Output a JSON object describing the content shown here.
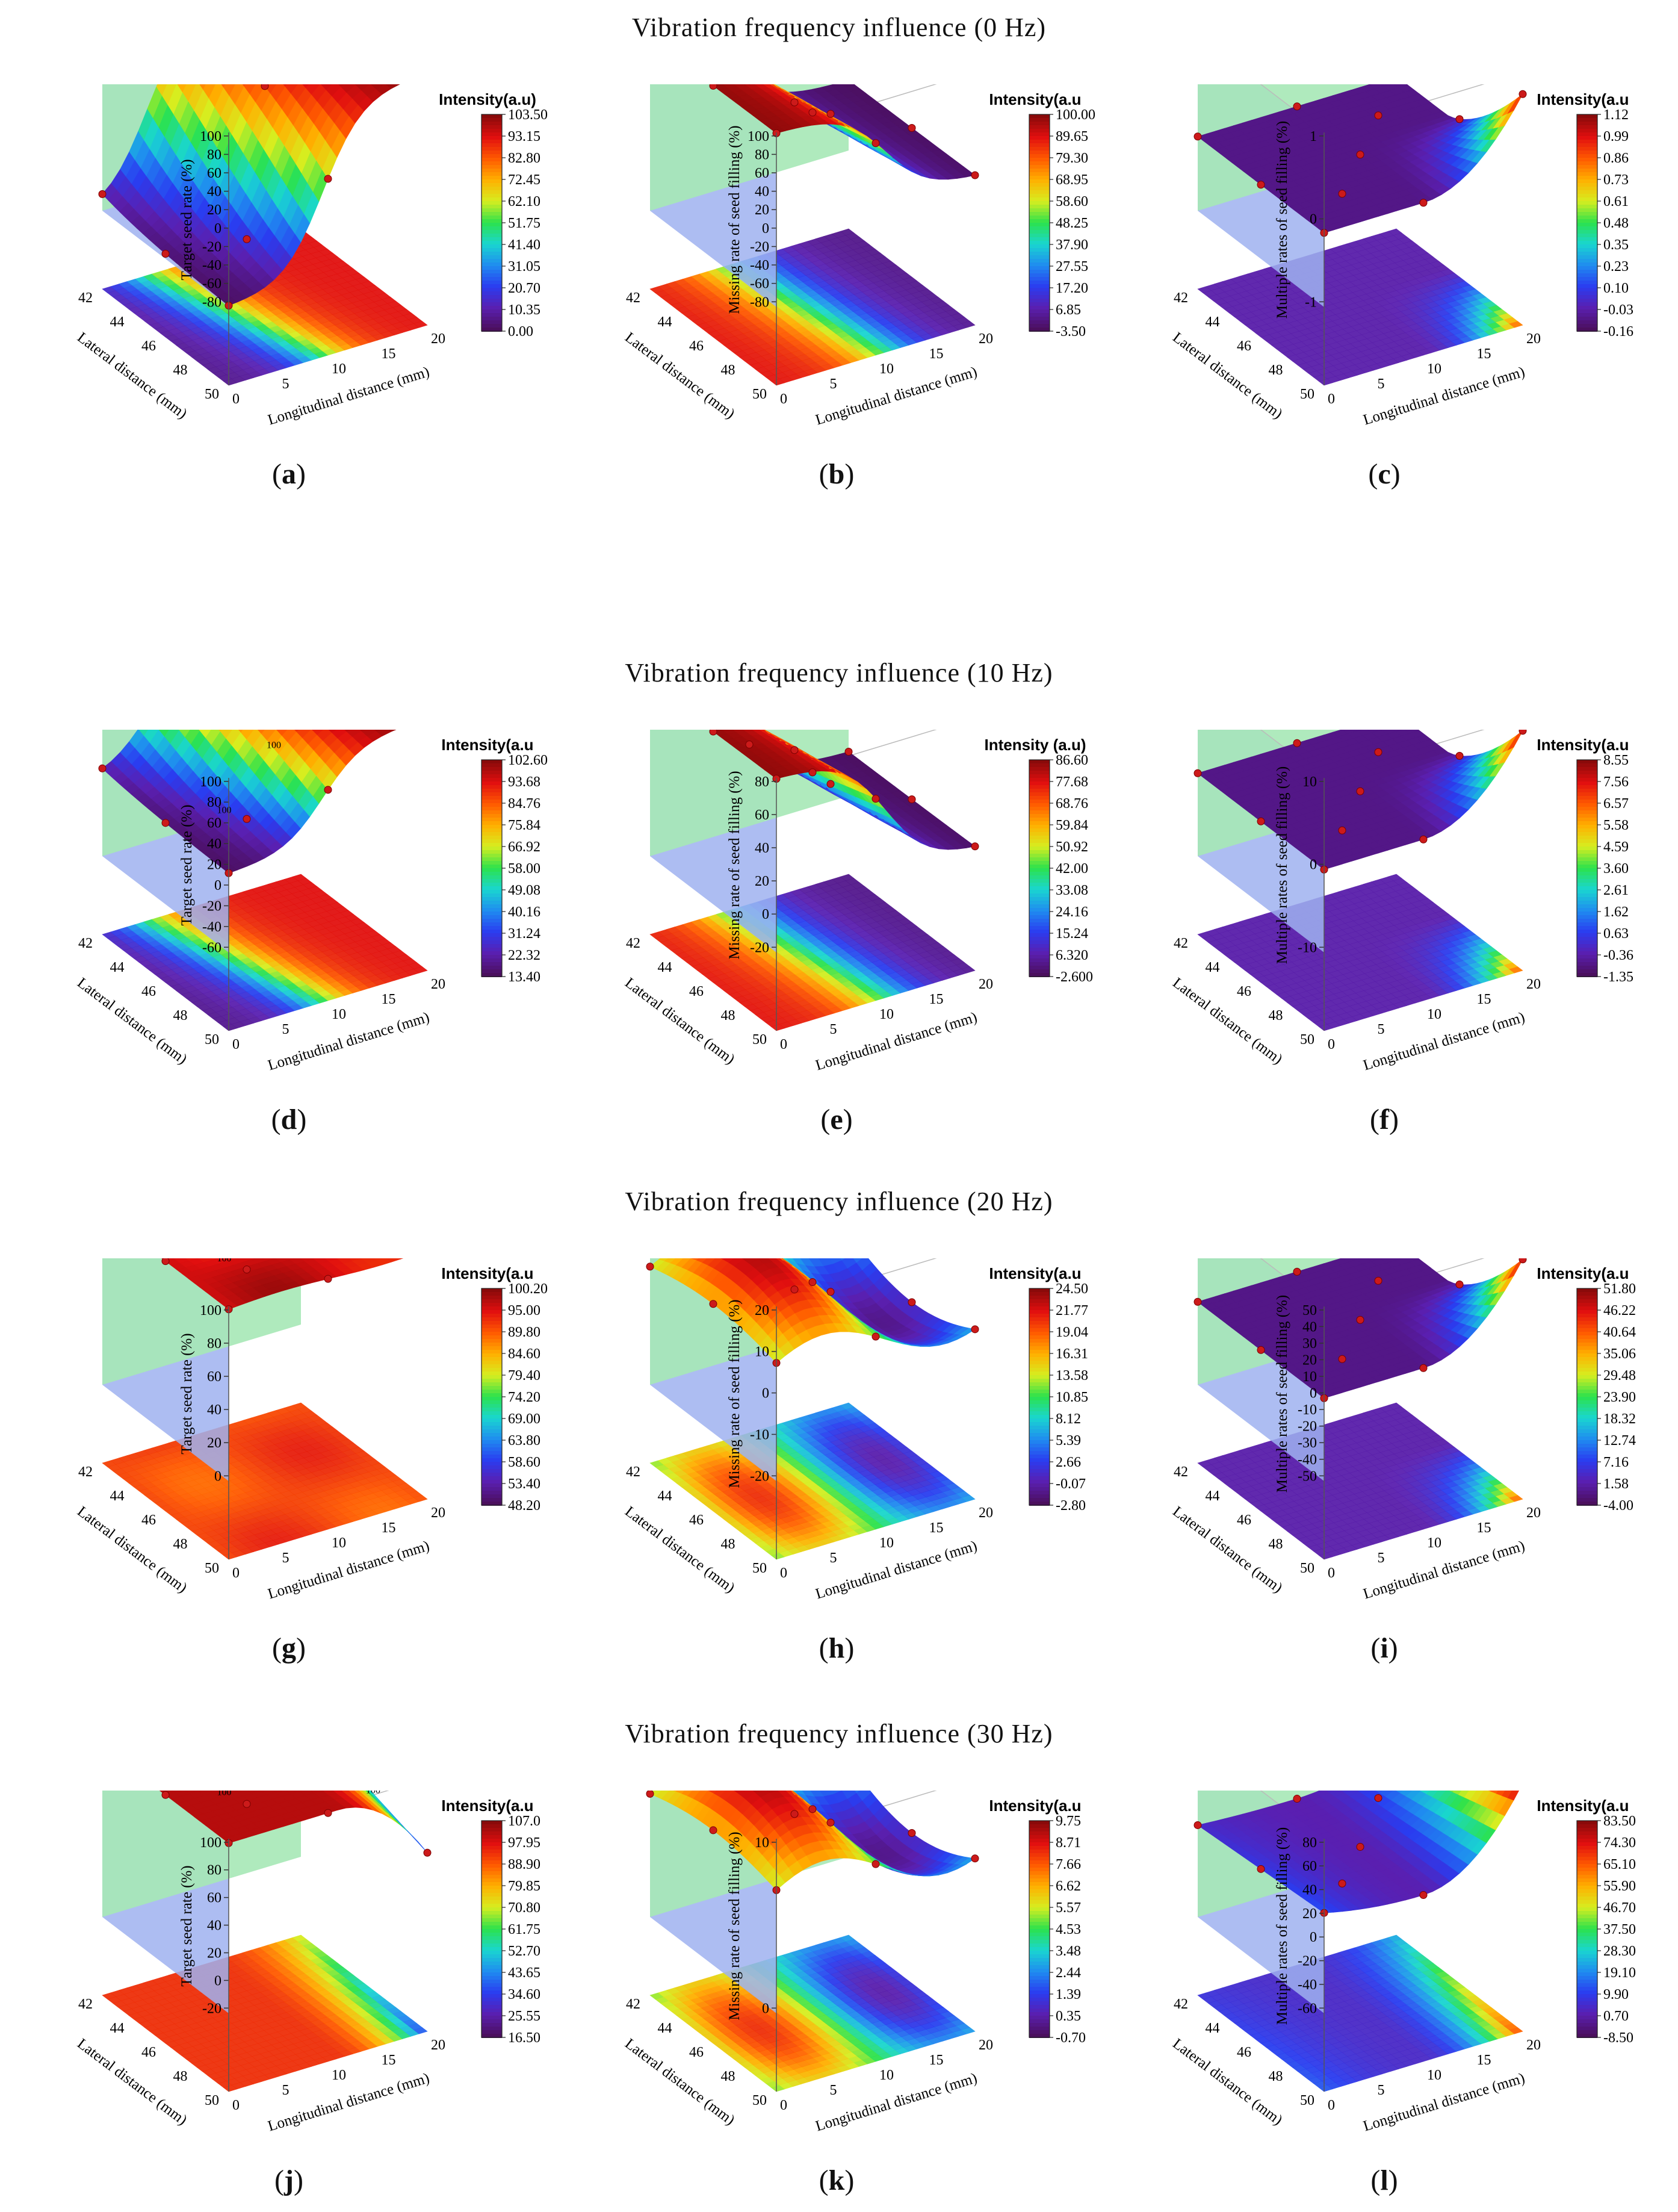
{
  "sections": [
    {
      "title": "Vibration frequency influence (0 Hz)"
    },
    {
      "title": "Vibration frequency influence (10 Hz)"
    },
    {
      "title": "Vibration frequency influence (20 Hz)"
    },
    {
      "title": "Vibration frequency influence (30 Hz)"
    }
  ],
  "chart_data": [
    {
      "id": "a",
      "type": "surface3d",
      "caption_letter": "a",
      "ylabel": "Target seed rate (%)",
      "xlabel": "Longitudinal distance (mm)",
      "zlabel": "Lateral distance (mm)",
      "z_ticks": [
        "100",
        "80",
        "60",
        "40",
        "20",
        "0",
        "-20",
        "-40",
        "-60",
        "-80"
      ],
      "zlim": [
        -90,
        105
      ],
      "colorbar_title": "Intensity(a.u)",
      "colorbar_ticks": [
        "103.50",
        "93.15",
        "82.80",
        "72.45",
        "62.10",
        "51.75",
        "41.40",
        "31.05",
        "20.70",
        "10.35",
        "0.00"
      ],
      "surface_labels": [],
      "shape": "ridge",
      "surface_range": [
        0,
        1
      ]
    },
    {
      "id": "b",
      "type": "surface3d",
      "caption_letter": "b",
      "ylabel": "Missing rate of seed filling (%)",
      "xlabel": "Longitudinal distance (mm)",
      "zlabel": "Lateral distance (mm)",
      "z_ticks": [
        "100",
        "80",
        "60",
        "40",
        "20",
        "0",
        "-20",
        "-40",
        "-60",
        "-80"
      ],
      "zlim": [
        -90,
        105
      ],
      "colorbar_title": "Intensity(a.u",
      "colorbar_ticks": [
        "100.00",
        "89.65",
        "79.30",
        "68.95",
        "58.60",
        "48.25",
        "37.90",
        "27.55",
        "17.20",
        "6.85",
        "-3.50"
      ],
      "surface_labels": [],
      "shape": "slope",
      "surface_range": [
        0.4,
        1
      ]
    },
    {
      "id": "c",
      "type": "surface3d",
      "caption_letter": "c",
      "ylabel": "Multiple rates of seed filling (%)",
      "xlabel": "Longitudinal distance (mm)",
      "zlabel": "Lateral distance (mm)",
      "z_ticks": [
        "1",
        "0",
        "-1"
      ],
      "zlim": [
        -1.2,
        1.2
      ],
      "colorbar_title": "Intensity(a.u",
      "colorbar_ticks": [
        "1.12",
        "0.99",
        "0.86",
        "0.73",
        "0.61",
        "0.48",
        "0.35",
        "0.23",
        "0.10",
        "-0.03",
        "-0.16"
      ],
      "surface_labels": [],
      "shape": "corner",
      "surface_range": [
        0.4,
        0.9
      ]
    },
    {
      "id": "d",
      "type": "surface3d",
      "caption_letter": "d",
      "ylabel": "Target seed rate (%)",
      "xlabel": "Longitudinal distance (mm)",
      "zlabel": "Lateral distance (mm)",
      "z_ticks": [
        "100",
        "80",
        "60",
        "40",
        "20",
        "0",
        "-20",
        "-40",
        "-60"
      ],
      "zlim": [
        -65,
        105
      ],
      "colorbar_title": "Intensity(a.u",
      "colorbar_ticks": [
        "102.60",
        "93.68",
        "84.76",
        "75.84",
        "66.92",
        "58.00",
        "49.08",
        "40.16",
        "31.24",
        "22.32",
        "13.40"
      ],
      "surface_labels": [
        "100",
        "100",
        "100"
      ],
      "shape": "ridge",
      "surface_range": [
        0.45,
        1
      ]
    },
    {
      "id": "e",
      "type": "surface3d",
      "caption_letter": "e",
      "ylabel": "Missing rate of seed filling (%)",
      "xlabel": "Longitudinal distance (mm)",
      "zlabel": "Lateral distance (mm)",
      "z_ticks": [
        "80",
        "60",
        "40",
        "20",
        "0",
        "-20"
      ],
      "zlim": [
        -30,
        85
      ],
      "colorbar_title": "Intensity (a.u)",
      "colorbar_ticks": [
        "86.60",
        "77.68",
        "68.76",
        "59.84",
        "50.92",
        "42.00",
        "33.08",
        "24.16",
        "15.24",
        "6.320",
        "-2.600"
      ],
      "surface_labels": [],
      "shape": "slope",
      "surface_range": [
        0.25,
        1
      ]
    },
    {
      "id": "f",
      "type": "surface3d",
      "caption_letter": "f",
      "ylabel": "Multiple rates of seed filling (%)",
      "xlabel": "Longitudinal distance (mm)",
      "zlabel": "Lateral distance (mm)",
      "z_ticks": [
        "10",
        "0",
        "-10"
      ],
      "zlim": [
        -11,
        11
      ],
      "colorbar_title": "Intensity(a.u",
      "colorbar_ticks": [
        "8.55",
        "7.56",
        "6.57",
        "5.58",
        "4.59",
        "3.60",
        "2.61",
        "1.62",
        "0.63",
        "-0.36",
        "-1.35"
      ],
      "surface_labels": [],
      "shape": "corner",
      "surface_range": [
        0.45,
        0.95
      ]
    },
    {
      "id": "g",
      "type": "surface3d",
      "caption_letter": "g",
      "ylabel": "Target seed rate (%)",
      "xlabel": "Longitudinal distance (mm)",
      "zlabel": "Lateral distance (mm)",
      "z_ticks": [
        "100",
        "80",
        "60",
        "40",
        "20",
        "0"
      ],
      "zlim": [
        -10,
        105
      ],
      "colorbar_title": "Intensity(a.u",
      "colorbar_ticks": [
        "100.20",
        "95.00",
        "89.80",
        "84.60",
        "79.40",
        "74.20",
        "69.00",
        "63.80",
        "58.60",
        "53.40",
        "48.20"
      ],
      "surface_labels": [
        "100"
      ],
      "shape": "flat",
      "surface_range": [
        0.8,
        1
      ]
    },
    {
      "id": "h",
      "type": "surface3d",
      "caption_letter": "h",
      "ylabel": "Missing rate of seed filling (%)",
      "xlabel": "Longitudinal distance (mm)",
      "zlabel": "Lateral distance (mm)",
      "z_ticks": [
        "20",
        "10",
        "0",
        "-10",
        "-20"
      ],
      "zlim": [
        -25,
        25
      ],
      "colorbar_title": "Intensity(a.u",
      "colorbar_ticks": [
        "24.50",
        "21.77",
        "19.04",
        "16.31",
        "13.58",
        "10.85",
        "8.12",
        "5.39",
        "2.66",
        "-0.07",
        "-2.80"
      ],
      "surface_labels": [],
      "shape": "wave",
      "surface_range": [
        0.3,
        0.95
      ]
    },
    {
      "id": "i",
      "type": "surface3d",
      "caption_letter": "i",
      "ylabel": "Multiple rates of seed filling (%)",
      "xlabel": "Longitudinal distance (mm)",
      "zlabel": "Lateral distance (mm)",
      "z_ticks": [
        "50",
        "40",
        "30",
        "20",
        "10",
        "0",
        "-10",
        "-20",
        "-30",
        "-40",
        "-50"
      ],
      "zlim": [
        -55,
        55
      ],
      "colorbar_title": "Intensity(a.u",
      "colorbar_ticks": [
        "51.80",
        "46.22",
        "40.64",
        "35.06",
        "29.48",
        "23.90",
        "18.32",
        "12.74",
        "7.16",
        "1.58",
        "-4.00"
      ],
      "surface_labels": [],
      "shape": "corner",
      "surface_range": [
        0.45,
        0.95
      ]
    },
    {
      "id": "j",
      "type": "surface3d",
      "caption_letter": "j",
      "ylabel": "Target seed rate (%)",
      "xlabel": "Longitudinal distance (mm)",
      "zlabel": "Lateral distance (mm)",
      "z_ticks": [
        "100",
        "80",
        "60",
        "40",
        "20",
        "0",
        "-20"
      ],
      "zlim": [
        -30,
        110
      ],
      "colorbar_title": "Intensity(a.u",
      "colorbar_ticks": [
        "107.0",
        "97.95",
        "88.90",
        "79.85",
        "70.80",
        "61.75",
        "52.70",
        "43.65",
        "34.60",
        "25.55",
        "16.50"
      ],
      "surface_labels": [
        "100",
        "100",
        "100",
        "100"
      ],
      "shape": "flat_drop",
      "surface_range": [
        0.5,
        1
      ]
    },
    {
      "id": "k",
      "type": "surface3d",
      "caption_letter": "k",
      "ylabel": "Missing rate of seed filling (%)",
      "xlabel": "Longitudinal distance (mm)",
      "zlabel": "Lateral distance (mm)",
      "z_ticks": [
        "10",
        "0"
      ],
      "zlim": [
        -10,
        10
      ],
      "colorbar_title": "Intensity(a.u",
      "colorbar_ticks": [
        "9.75",
        "8.71",
        "7.66",
        "6.62",
        "5.57",
        "4.53",
        "3.48",
        "2.44",
        "1.39",
        "0.35",
        "-0.70"
      ],
      "surface_labels": [],
      "shape": "wave",
      "surface_range": [
        0.3,
        1
      ]
    },
    {
      "id": "l",
      "type": "surface3d",
      "caption_letter": "l",
      "ylabel": "Multiple rates of seed filling (%)",
      "xlabel": "Longitudinal distance (mm)",
      "zlabel": "Lateral distance (mm)",
      "z_ticks": [
        "80",
        "60",
        "40",
        "20",
        "0",
        "-20",
        "-40",
        "-60"
      ],
      "zlim": [
        -70,
        90
      ],
      "colorbar_title": "Intensity(a.u",
      "colorbar_ticks": [
        "83.50",
        "74.30",
        "65.10",
        "55.90",
        "46.70",
        "37.50",
        "28.30",
        "19.10",
        "9.90",
        "0.70",
        "-8.50"
      ],
      "surface_labels": [],
      "shape": "saddle",
      "surface_range": [
        0.45,
        1
      ]
    }
  ],
  "shared_axes": {
    "lateral_ticks": [
      "42",
      "44",
      "46",
      "48",
      "50"
    ],
    "longitudinal_ticks": [
      "0",
      "5",
      "10",
      "15",
      "20"
    ]
  },
  "colors": {
    "left_wall": "#9fb2f0",
    "right_wall": "#a6e8b6",
    "point": "#cc1a1a",
    "rainbow": [
      "#4b0f5e",
      "#5a1fb0",
      "#2a3cf0",
      "#1f8cf0",
      "#19d6d0",
      "#2ce24c",
      "#d6ee20",
      "#ffb000",
      "#ff5a00",
      "#e10f0f",
      "#8a0a0a"
    ]
  }
}
